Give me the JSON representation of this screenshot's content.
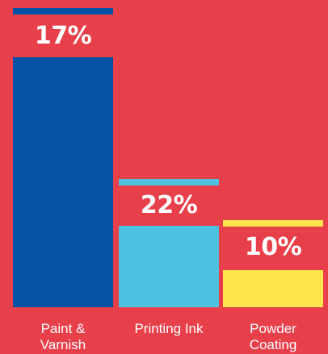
{
  "chart_data": {
    "type": "bar",
    "categories": [
      "Paint &\nVarnish",
      "Printing Ink",
      "Powder\nCoating"
    ],
    "values": [
      17,
      22,
      10
    ],
    "value_labels": [
      "17%",
      "22%",
      "10%"
    ],
    "title": "",
    "xlabel": "",
    "ylabel": "",
    "grid": false,
    "legend": "none",
    "colors": [
      "#0352a4",
      "#4ec2e0",
      "#fde64d"
    ],
    "background": "#e8404b",
    "label_color": "#ffffff"
  }
}
